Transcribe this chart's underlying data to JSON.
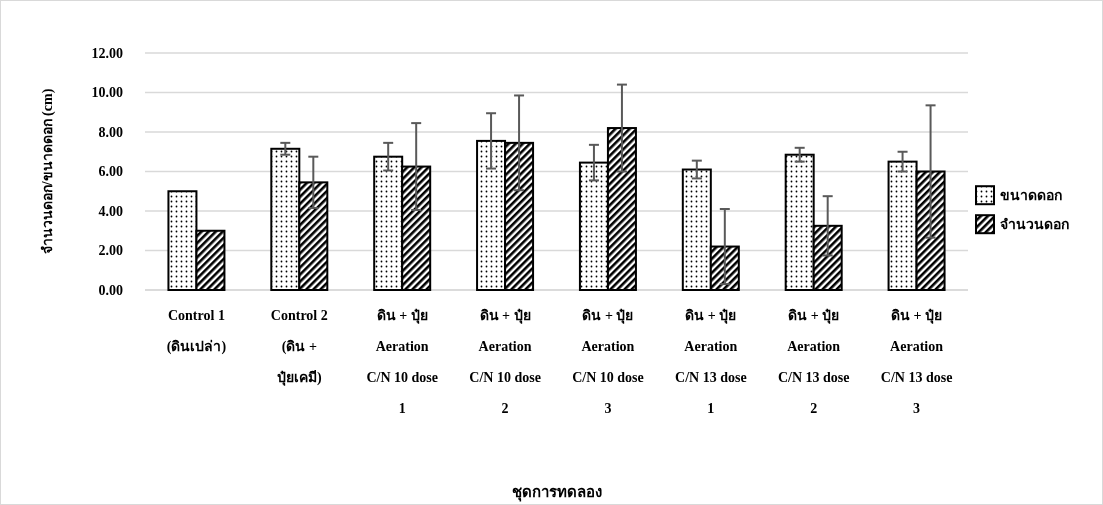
{
  "chart_data": {
    "type": "bar",
    "xlabel": "ชุดการทดลอง",
    "ylabel": "จำนวนดอก/ขนาดดอก (cm)",
    "categories": [
      "Control 1\n(ดินเปล่า)",
      "Control 2\n(ดิน +\nปุ๋ยเคมี)",
      "ดิน + ปุ๋ย\nAeration\nC/N 10 dose\n1",
      "ดิน + ปุ๋ย\nAeration\nC/N 10 dose\n2",
      "ดิน + ปุ๋ย\nAeration\nC/N 10 dose\n3",
      "ดิน + ปุ๋ย\nAeration\nC/N 13 dose\n1",
      "ดิน + ปุ๋ย\nAeration\nC/N 13 dose\n2",
      "ดิน + ปุ๋ย\nAeration\nC/N 13 dose\n3"
    ],
    "series": [
      {
        "name": "ขนาดดอก",
        "color": "#ffffff",
        "values": [
          5.0,
          7.15,
          6.75,
          7.55,
          6.45,
          6.1,
          6.85,
          6.5
        ],
        "errors": [
          null,
          0.3,
          0.7,
          1.4,
          0.9,
          0.45,
          0.35,
          0.5
        ]
      },
      {
        "name": "จำนวนดอก",
        "color": "#000000",
        "values": [
          3.0,
          5.45,
          6.25,
          7.45,
          8.2,
          2.2,
          3.25,
          6.0
        ],
        "errors": [
          null,
          1.3,
          2.2,
          2.4,
          2.2,
          1.9,
          1.5,
          3.35
        ]
      }
    ],
    "ylim": [
      0,
      12
    ],
    "yticks": [
      {
        "value": 0,
        "label": "0.00"
      },
      {
        "value": 2,
        "label": "2.00"
      },
      {
        "value": 4,
        "label": "4.00"
      },
      {
        "value": 6,
        "label": "6.00"
      },
      {
        "value": 8,
        "label": "8.00"
      },
      {
        "value": 10,
        "label": "10.00"
      },
      {
        "value": 12,
        "label": "12.00"
      }
    ],
    "grid": "y",
    "legend": "right"
  }
}
